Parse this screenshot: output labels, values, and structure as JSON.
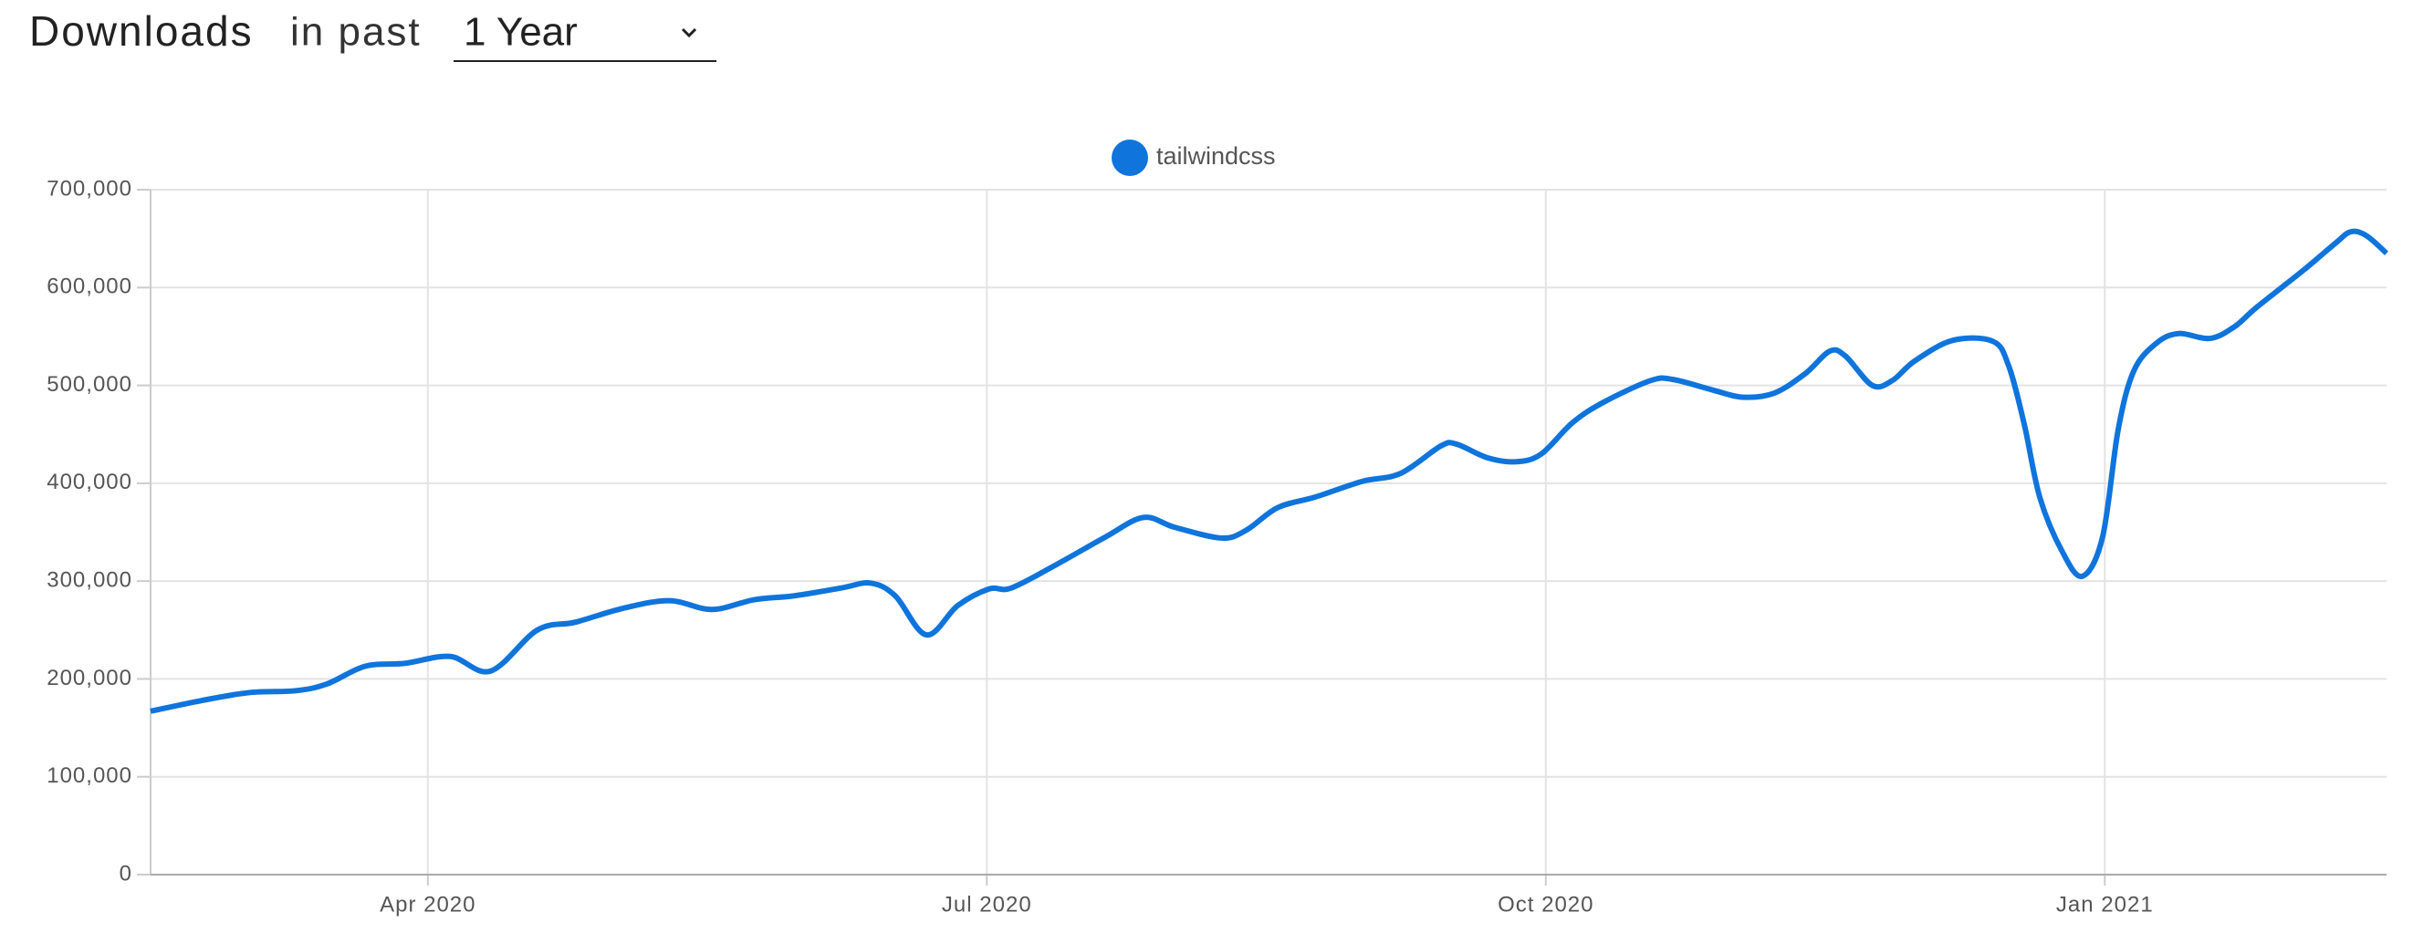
{
  "header": {
    "title": "Downloads",
    "subtitle": "in past",
    "period": "1 Year"
  },
  "chart_data": {
    "type": "line",
    "x": [
      2020.126,
      2020.149,
      2020.17,
      2020.191,
      2020.205,
      2020.222,
      2020.24,
      2020.26,
      2020.278,
      2020.299,
      2020.316,
      2020.337,
      2020.358,
      2020.377,
      2020.396,
      2020.414,
      2020.435,
      2020.448,
      2020.459,
      2020.473,
      2020.487,
      2020.501,
      2020.511,
      2020.532,
      2020.553,
      2020.57,
      2020.584,
      2020.605,
      2020.616,
      2020.63,
      2020.647,
      2020.668,
      2020.685,
      2020.703,
      2020.71,
      2020.724,
      2020.737,
      2020.748,
      2020.762,
      2020.776,
      2020.797,
      2020.807,
      2020.825,
      2020.838,
      2020.852,
      2020.866,
      2020.877,
      2020.884,
      2020.896,
      2020.905,
      2020.915,
      2020.932,
      2020.95,
      2020.957,
      2020.964,
      2020.971,
      2020.981,
      2020.99,
      2020.999,
      2021.006,
      2021.013,
      2021.023,
      2021.033,
      2021.047,
      2021.058,
      2021.068,
      2021.089,
      2021.103,
      2021.11,
      2021.117,
      2021.126
    ],
    "series": [
      {
        "name": "tailwindcss",
        "color": "#0f74dc",
        "values": [
          167000,
          178000,
          186000,
          188000,
          195000,
          213000,
          216000,
          223000,
          208000,
          250000,
          258000,
          272000,
          280000,
          271000,
          281000,
          285000,
          293000,
          298000,
          285000,
          245000,
          275000,
          292000,
          293000,
          318000,
          345000,
          365000,
          355000,
          344000,
          352000,
          375000,
          386000,
          402000,
          410000,
          438000,
          440000,
          426000,
          422000,
          430000,
          462000,
          483000,
          505000,
          506000,
          495000,
          488000,
          492000,
          512000,
          535000,
          530000,
          500000,
          505000,
          525000,
          546000,
          545000,
          520000,
          460000,
          385000,
          330000,
          305000,
          345000,
          455000,
          515000,
          543000,
          553000,
          548000,
          560000,
          580000,
          618000,
          645000,
          657000,
          653000,
          635000
        ]
      }
    ],
    "xlim": [
      2020.126,
      2021.126
    ],
    "xticks": [
      {
        "value": 2020.25,
        "label": "Apr 2020"
      },
      {
        "value": 2020.5,
        "label": "Jul 2020"
      },
      {
        "value": 2020.75,
        "label": "Oct 2020"
      },
      {
        "value": 2021.0,
        "label": "Jan 2021"
      }
    ],
    "ylim": [
      0,
      700000
    ],
    "yticks": [
      0,
      {
        "value": 100000,
        "label": "100,000"
      },
      {
        "value": 200000,
        "label": "200,000"
      },
      {
        "value": 300000,
        "label": "300,000"
      },
      {
        "value": 400000,
        "label": "400,000"
      },
      {
        "value": 500000,
        "label": "500,000"
      },
      {
        "value": 600000,
        "label": "600,000"
      },
      {
        "value": 700000,
        "label": "700,000"
      }
    ],
    "grid": true
  }
}
